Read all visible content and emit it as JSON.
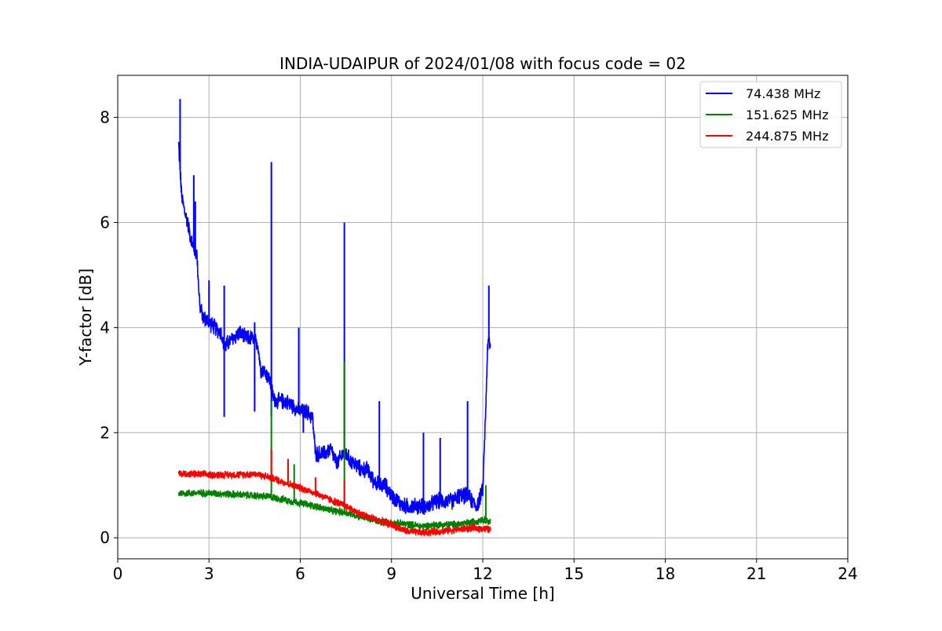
{
  "chart_data": {
    "type": "line",
    "title": "INDIA-UDAIPUR of 2024/01/08 with focus code = 02",
    "xlabel": "Universal Time [h]",
    "ylabel": "Y-factor [dB]",
    "xlim": [
      0,
      24
    ],
    "ylim": [
      -0.4,
      8.8
    ],
    "xticks": [
      0,
      3,
      6,
      9,
      12,
      15,
      18,
      21,
      24
    ],
    "yticks": [
      0,
      2,
      4,
      6,
      8
    ],
    "grid": true,
    "legend_position": "top-right",
    "series": [
      {
        "name": " 74.438 MHz",
        "color": "#0000ff",
        "noise": 0.18,
        "x": [
          2.0,
          2.05,
          2.1,
          2.2,
          2.3,
          2.4,
          2.5,
          2.6,
          2.7,
          2.8,
          3.0,
          3.2,
          3.4,
          3.5,
          3.6,
          3.8,
          4.0,
          4.2,
          4.4,
          4.6,
          4.7,
          4.8,
          5.0,
          5.1,
          5.2,
          5.5,
          5.8,
          6.0,
          6.2,
          6.4,
          6.5,
          6.6,
          6.8,
          7.0,
          7.2,
          7.4,
          7.5,
          7.6,
          7.8,
          8.0,
          8.2,
          8.4,
          8.6,
          8.8,
          9.0,
          9.2,
          9.4,
          9.6,
          9.8,
          10.0,
          10.2,
          10.5,
          10.8,
          11.0,
          11.2,
          11.5,
          11.8,
          12.0,
          12.1,
          12.15,
          12.2,
          12.25
        ],
        "y": [
          7.5,
          7.0,
          6.5,
          6.2,
          6.0,
          5.7,
          5.5,
          5.4,
          4.4,
          4.2,
          4.1,
          4.0,
          3.9,
          3.6,
          3.7,
          3.8,
          3.9,
          3.8,
          3.8,
          3.7,
          3.2,
          3.2,
          3.0,
          2.7,
          2.6,
          2.6,
          2.5,
          2.4,
          2.4,
          2.3,
          1.6,
          1.6,
          1.6,
          1.7,
          1.4,
          1.6,
          1.6,
          1.5,
          1.4,
          1.3,
          1.3,
          1.1,
          1.0,
          1.0,
          0.8,
          0.7,
          0.6,
          0.6,
          0.6,
          0.6,
          0.6,
          0.7,
          0.7,
          0.7,
          0.8,
          0.8,
          0.6,
          0.9,
          2.5,
          3.5,
          3.8,
          3.6
        ],
        "spikes": [
          [
            2.05,
            8.35
          ],
          [
            2.5,
            6.9
          ],
          [
            2.55,
            6.4
          ],
          [
            3.0,
            4.9
          ],
          [
            3.5,
            4.8
          ],
          [
            3.5,
            2.3
          ],
          [
            4.5,
            4.1
          ],
          [
            4.5,
            2.4
          ],
          [
            5.05,
            7.15
          ],
          [
            5.05,
            2.3
          ],
          [
            5.95,
            4.0
          ],
          [
            6.1,
            2.0
          ],
          [
            7.45,
            6.0
          ],
          [
            8.6,
            2.6
          ],
          [
            10.05,
            2.0
          ],
          [
            10.6,
            1.9
          ],
          [
            11.5,
            2.6
          ],
          [
            12.2,
            4.8
          ]
        ]
      },
      {
        "name": "151.625 MHz",
        "color": "#008000",
        "noise": 0.08,
        "x": [
          2.0,
          3.0,
          4.0,
          5.0,
          5.5,
          6.0,
          6.5,
          7.0,
          7.5,
          8.0,
          8.5,
          9.0,
          9.5,
          10.0,
          10.5,
          11.0,
          11.5,
          12.0,
          12.25
        ],
        "y": [
          0.85,
          0.85,
          0.82,
          0.78,
          0.72,
          0.66,
          0.6,
          0.52,
          0.48,
          0.4,
          0.32,
          0.28,
          0.26,
          0.22,
          0.25,
          0.25,
          0.28,
          0.35,
          0.3
        ],
        "spikes": [
          [
            5.05,
            2.6
          ],
          [
            7.45,
            3.35
          ],
          [
            5.8,
            1.4
          ],
          [
            12.1,
            1.0
          ]
        ]
      },
      {
        "name": "244.875 MHz",
        "color": "#ff0000",
        "noise": 0.08,
        "x": [
          2.0,
          3.0,
          4.0,
          4.5,
          5.0,
          5.5,
          6.0,
          6.5,
          7.0,
          7.5,
          8.0,
          8.5,
          9.0,
          9.5,
          10.0,
          10.5,
          11.0,
          11.5,
          12.0,
          12.25
        ],
        "y": [
          1.22,
          1.2,
          1.2,
          1.22,
          1.15,
          1.05,
          0.95,
          0.85,
          0.72,
          0.6,
          0.45,
          0.35,
          0.25,
          0.12,
          0.1,
          0.12,
          0.15,
          0.18,
          0.18,
          0.15
        ],
        "spikes": [
          [
            5.05,
            1.7
          ],
          [
            5.6,
            1.5
          ],
          [
            6.5,
            1.15
          ],
          [
            7.45,
            1.1
          ]
        ]
      }
    ]
  }
}
